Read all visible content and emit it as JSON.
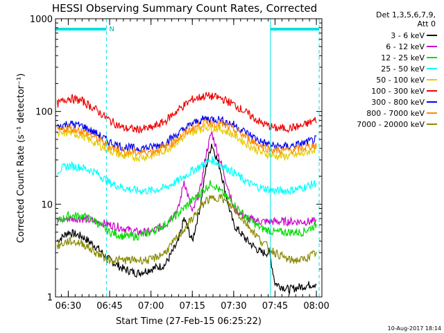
{
  "chart_data": {
    "type": "line",
    "title": "HESSI Observing Summary Count Rates, Corrected",
    "xlabel": "Start Time (27-Feb-15 06:25:22)",
    "ylabel": "Corrected Count Rate (s⁻¹ detector⁻¹)",
    "yscale": "log",
    "ylim": [
      1,
      1000
    ],
    "xlim": [
      "06:25:22",
      "08:02:00"
    ],
    "x_ticks": [
      "06:30",
      "06:45",
      "07:00",
      "07:15",
      "07:30",
      "07:45",
      "08:00"
    ],
    "y_ticks": [
      "1",
      "10",
      "100",
      "1000"
    ],
    "legend_header": [
      "Det 1,3,5,6,7,9,",
      "Att 0"
    ],
    "legend_position": "top-right",
    "night_marks": [
      {
        "start": "06:25:22",
        "end": "06:43:50"
      },
      {
        "start": "07:43:20",
        "end": "08:01:00"
      }
    ],
    "saa_label": "N",
    "series": [
      {
        "name": "3 - 6 keV",
        "color": "#000000",
        "x": [
          "06:26",
          "06:30",
          "06:35",
          "06:40",
          "06:45",
          "06:50",
          "06:55",
          "07:00",
          "07:05",
          "07:10",
          "07:12",
          "07:15",
          "07:18",
          "07:20",
          "07:22",
          "07:25",
          "07:28",
          "07:30",
          "07:35",
          "07:40",
          "07:43",
          "07:45",
          "07:50",
          "07:55",
          "08:00"
        ],
        "y": [
          4,
          5,
          4.5,
          3.5,
          2.5,
          2,
          1.8,
          2,
          2.2,
          4,
          7,
          4,
          10,
          25,
          45,
          25,
          10,
          6,
          4,
          3,
          3,
          1.4,
          1.2,
          1.3,
          1.4
        ]
      },
      {
        "name": "6 - 12 keV",
        "color": "#cc00cc",
        "x": [
          "06:26",
          "06:30",
          "06:35",
          "06:40",
          "06:45",
          "06:50",
          "06:55",
          "07:00",
          "07:05",
          "07:10",
          "07:12",
          "07:15",
          "07:18",
          "07:20",
          "07:22",
          "07:25",
          "07:28",
          "07:30",
          "07:35",
          "07:40",
          "07:45",
          "07:50",
          "07:55",
          "08:00"
        ],
        "y": [
          6.5,
          7,
          7,
          6.5,
          6,
          5.5,
          5,
          5,
          6,
          9,
          18,
          8,
          15,
          35,
          60,
          30,
          15,
          9,
          7,
          6.5,
          6.5,
          6.5,
          6.5,
          6.5
        ]
      },
      {
        "name": "12 - 25 keV",
        "color": "#00dd00",
        "x": [
          "06:26",
          "06:30",
          "06:35",
          "06:40",
          "06:45",
          "06:50",
          "06:55",
          "07:00",
          "07:05",
          "07:10",
          "07:15",
          "07:20",
          "07:22",
          "07:25",
          "07:30",
          "07:35",
          "07:40",
          "07:45",
          "07:50",
          "07:55",
          "08:00"
        ],
        "y": [
          6.5,
          7.5,
          7.5,
          6.5,
          5,
          4.5,
          4.5,
          5,
          6,
          8,
          11,
          15,
          17,
          14,
          10,
          7,
          5.5,
          5,
          5,
          5,
          6
        ]
      },
      {
        "name": "25 - 50 keV",
        "color": "#00ffff",
        "x": [
          "06:26",
          "06:30",
          "06:35",
          "06:40",
          "06:45",
          "06:50",
          "06:55",
          "07:00",
          "07:05",
          "07:10",
          "07:15",
          "07:20",
          "07:22",
          "07:25",
          "07:30",
          "07:35",
          "07:40",
          "07:45",
          "07:50",
          "07:55",
          "08:00"
        ],
        "y": [
          23,
          26,
          25,
          22,
          17,
          15,
          14,
          14,
          15,
          18,
          23,
          28,
          30,
          27,
          22,
          17,
          15,
          14,
          14,
          15,
          17
        ]
      },
      {
        "name": "50 - 100 keV",
        "color": "#e6cc00",
        "x": [
          "06:26",
          "06:30",
          "06:35",
          "06:40",
          "06:45",
          "06:50",
          "06:55",
          "07:00",
          "07:05",
          "07:10",
          "07:15",
          "07:20",
          "07:25",
          "07:30",
          "07:35",
          "07:40",
          "07:45",
          "07:50",
          "07:55",
          "08:00"
        ],
        "y": [
          55,
          60,
          55,
          45,
          38,
          33,
          32,
          33,
          38,
          48,
          60,
          68,
          65,
          56,
          44,
          36,
          33,
          33,
          35,
          40
        ]
      },
      {
        "name": "100 - 300 keV",
        "color": "#ee0000",
        "x": [
          "06:26",
          "06:30",
          "06:35",
          "06:40",
          "06:45",
          "06:50",
          "06:55",
          "07:00",
          "07:05",
          "07:10",
          "07:15",
          "07:20",
          "07:25",
          "07:30",
          "07:35",
          "07:40",
          "07:45",
          "07:50",
          "07:55",
          "08:00"
        ],
        "y": [
          120,
          140,
          130,
          105,
          80,
          66,
          64,
          66,
          78,
          105,
          135,
          148,
          140,
          120,
          95,
          75,
          66,
          66,
          70,
          82
        ]
      },
      {
        "name": "300 - 800 keV",
        "color": "#0000ee",
        "x": [
          "06:26",
          "06:30",
          "06:35",
          "06:40",
          "06:45",
          "06:50",
          "06:55",
          "07:00",
          "07:05",
          "07:10",
          "07:15",
          "07:20",
          "07:25",
          "07:30",
          "07:35",
          "07:40",
          "07:45",
          "07:50",
          "07:55",
          "08:00"
        ],
        "y": [
          68,
          74,
          70,
          58,
          47,
          41,
          40,
          41,
          46,
          58,
          74,
          84,
          82,
          72,
          58,
          47,
          42,
          42,
          45,
          50
        ]
      },
      {
        "name": "800 - 7000 keV",
        "color": "#ff8800",
        "x": [
          "06:26",
          "06:30",
          "06:35",
          "06:40",
          "06:45",
          "06:50",
          "06:55",
          "07:00",
          "07:05",
          "07:10",
          "07:15",
          "07:20",
          "07:25",
          "07:30",
          "07:35",
          "07:40",
          "07:45",
          "07:50",
          "07:55",
          "08:00"
        ],
        "y": [
          62,
          66,
          62,
          52,
          42,
          37,
          36,
          37,
          41,
          52,
          66,
          76,
          74,
          64,
          52,
          42,
          38,
          38,
          40,
          44
        ]
      },
      {
        "name": "7000 - 20000 keV",
        "color": "#888800",
        "x": [
          "06:26",
          "06:30",
          "06:35",
          "06:40",
          "06:45",
          "06:50",
          "06:55",
          "07:00",
          "07:05",
          "07:10",
          "07:15",
          "07:20",
          "07:25",
          "07:30",
          "07:35",
          "07:40",
          "07:45",
          "07:50",
          "07:55",
          "08:00"
        ],
        "y": [
          3.5,
          4,
          3.8,
          3,
          2.5,
          2.5,
          2.5,
          2.5,
          3,
          4.5,
          7,
          11,
          12,
          9,
          6,
          4,
          3,
          2.5,
          2.5,
          3
        ]
      }
    ]
  },
  "footer_stamp": "10-Aug-2017 18:14"
}
